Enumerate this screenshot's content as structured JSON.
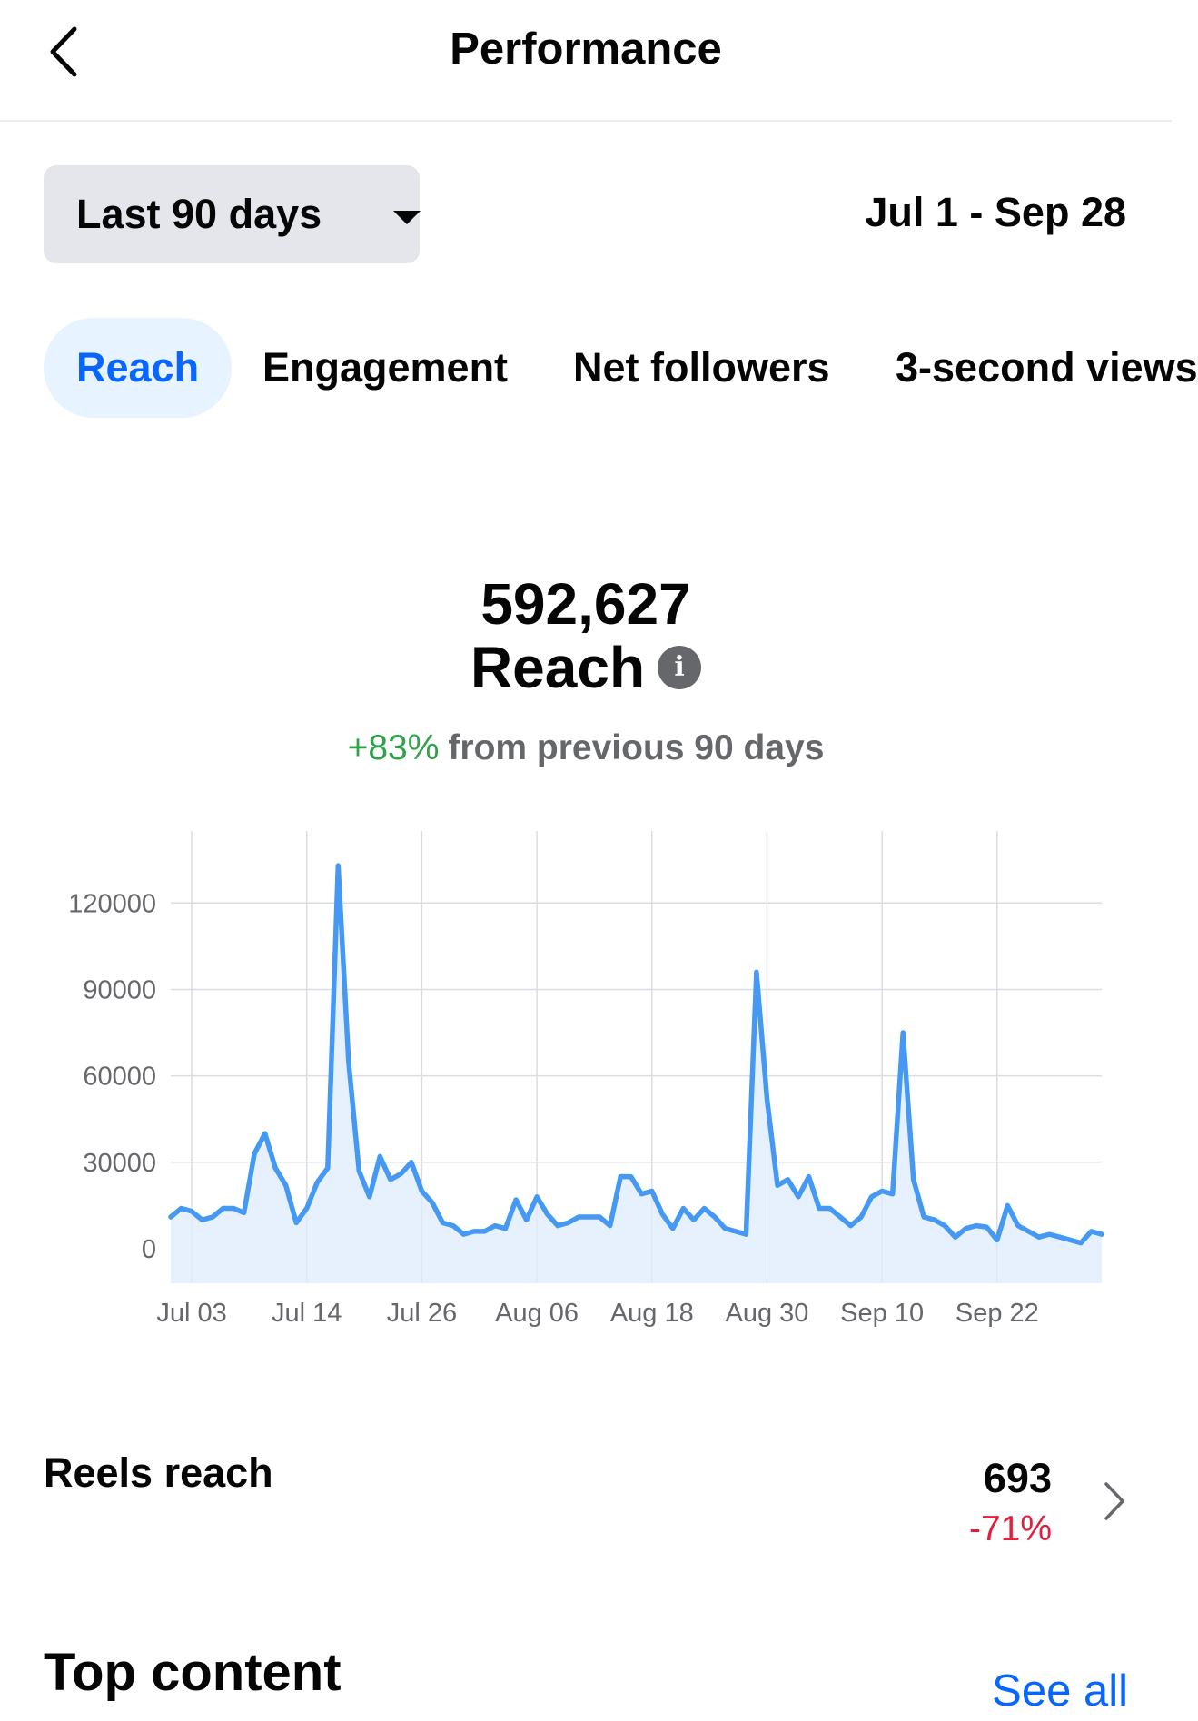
{
  "header": {
    "title": "Performance"
  },
  "range": {
    "selected": "Last 90 days",
    "dates": "Jul 1 - Sep 28"
  },
  "tabs": [
    {
      "label": "Reach",
      "active": true
    },
    {
      "label": "Engagement",
      "active": false
    },
    {
      "label": "Net followers",
      "active": false
    },
    {
      "label": "3-second views",
      "active": false
    }
  ],
  "metric": {
    "value": "592,627",
    "label": "Reach",
    "change_pct": "+83%",
    "change_text": "from previous 90 days"
  },
  "chart_data": {
    "type": "area",
    "title": "",
    "xlabel": "",
    "ylabel": "",
    "ylim": [
      -12000,
      145000
    ],
    "y_ticks": [
      0,
      30000,
      60000,
      90000,
      120000
    ],
    "x_tick_labels": [
      "Jul 03",
      "Jul 14",
      "Jul 26",
      "Aug 06",
      "Aug 18",
      "Aug 30",
      "Sep 10",
      "Sep 22"
    ],
    "x_tick_days": [
      2,
      13,
      24,
      35,
      46,
      57,
      68,
      79
    ],
    "grid": true,
    "line_color": "#4599f2",
    "fill_color": "#e6f1fd",
    "series": [
      {
        "values": [
          11000,
          14000,
          13000,
          10000,
          11000,
          14000,
          14000,
          12500,
          33000,
          40000,
          28000,
          22000,
          9000,
          14000,
          23000,
          28000,
          133000,
          65000,
          27000,
          18000,
          32000,
          24000,
          26000,
          30000,
          20000,
          16000,
          9000,
          8000,
          5000,
          6000,
          6000,
          8000,
          7000,
          17000,
          10000,
          18000,
          12000,
          8000,
          9000,
          11000,
          11000,
          11000,
          8000,
          25000,
          25000,
          19000,
          20000,
          12000,
          7000,
          14000,
          10000,
          14000,
          11000,
          7000,
          6000,
          5000,
          96000,
          52000,
          22000,
          24000,
          18000,
          25000,
          14000,
          14000,
          11000,
          8000,
          11000,
          18000,
          20000,
          19000,
          75000,
          24000,
          11000,
          10000,
          8000,
          4000,
          7000,
          8000,
          7500,
          3000,
          15000,
          8000,
          6000,
          4000,
          5000,
          4000,
          3000,
          2000,
          6000,
          5000
        ]
      }
    ]
  },
  "reels": {
    "label": "Reels reach",
    "value": "693",
    "change": "-71%"
  },
  "top_content": {
    "title": "Top content",
    "see_all": "See all"
  },
  "icons": {
    "back": "chevron-left-icon",
    "dropdown": "caret-down-icon",
    "info": "info-icon",
    "row_chevron": "chevron-right-icon"
  }
}
